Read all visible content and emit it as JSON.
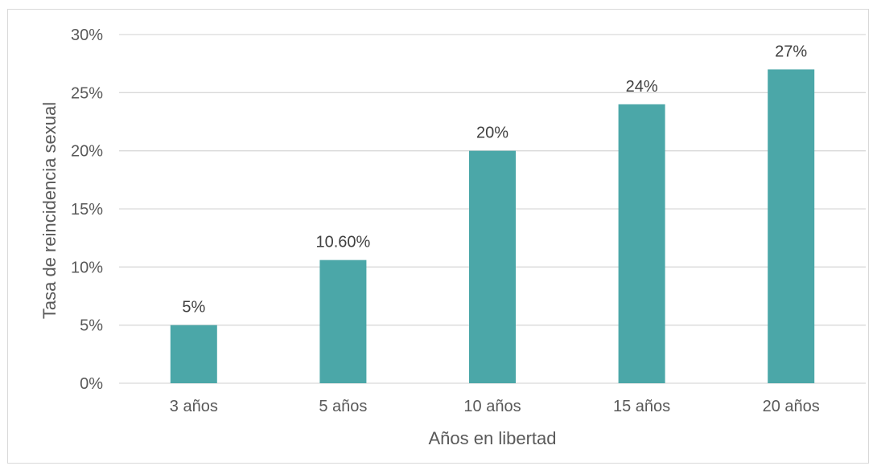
{
  "chart_data": {
    "type": "bar",
    "categories": [
      "3 años",
      "5 años",
      "10 años",
      "15 años",
      "20 años"
    ],
    "values": [
      0.05,
      0.106,
      0.2,
      0.24,
      0.27
    ],
    "data_labels": [
      "5%",
      "10.60%",
      "20%",
      "24%",
      "27%"
    ],
    "xlabel": "Años en libertad",
    "ylabel": "Tasa de reincidencia sexual",
    "ylim": [
      0,
      0.3
    ],
    "yticks": [
      0,
      0.05,
      0.1,
      0.15,
      0.2,
      0.25,
      0.3
    ],
    "ytick_labels": [
      "0%",
      "5%",
      "10%",
      "15%",
      "20%",
      "25%",
      "30%"
    ],
    "grid": true,
    "legend": "none",
    "bar_color": "#4ba7a8"
  }
}
